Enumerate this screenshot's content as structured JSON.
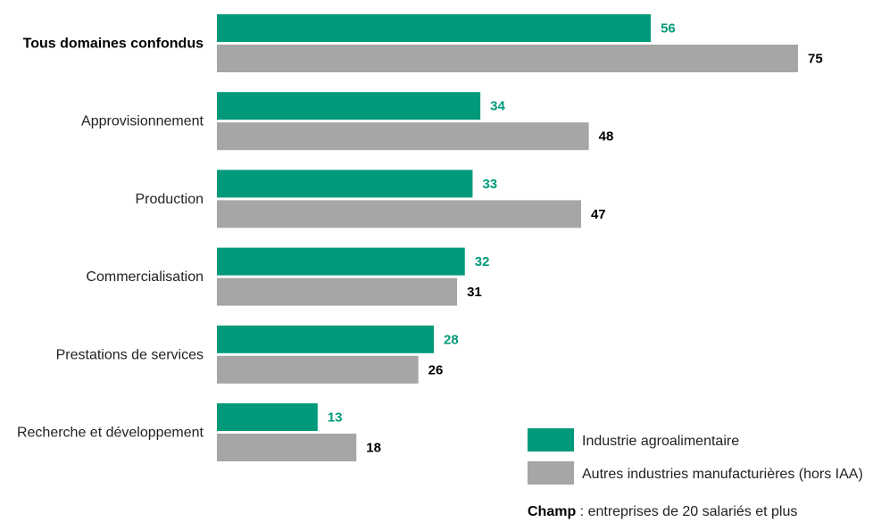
{
  "chart_data": {
    "type": "bar",
    "orientation": "horizontal",
    "categories": [
      "Tous domaines confondus",
      "Approvisionnement",
      "Production",
      "Commercialisation",
      "Prestations de services",
      "Recherche et développement"
    ],
    "highlight_category": "Tous domaines confondus",
    "series": [
      {
        "name": "Industrie agroalimentaire",
        "values": [
          56,
          34,
          33,
          32,
          28,
          13
        ],
        "color": "#009a7a"
      },
      {
        "name": "Autres industries manufacturières (hors IAA)",
        "values": [
          75,
          48,
          47,
          31,
          26,
          18
        ],
        "color": "#a6a6a6"
      }
    ],
    "value_label_colors": [
      "#009a7a",
      "#000000"
    ],
    "xlim": [
      0,
      80
    ],
    "grid": false,
    "legend_position": "bottom-right",
    "title": "",
    "xlabel": "",
    "ylabel": ""
  },
  "footnote": {
    "label": "Champ",
    "text": " : entreprises de 20 salariés et plus"
  }
}
